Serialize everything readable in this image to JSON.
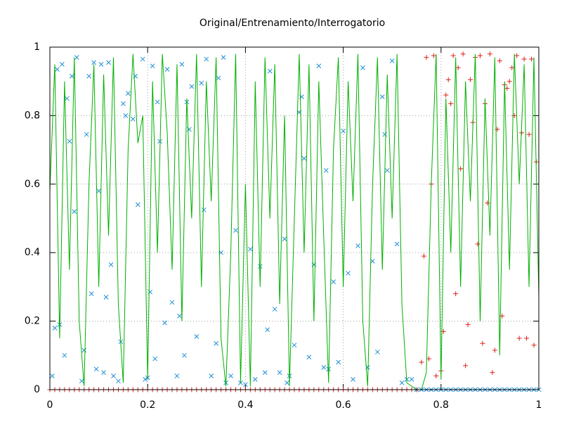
{
  "chart_data": {
    "type": "scatter",
    "title": "Original/Entrenamiento/Interrogatorio",
    "xlim": [
      0,
      1
    ],
    "ylim": [
      0,
      1
    ],
    "xticks": [
      0,
      0.2,
      0.4,
      0.6,
      0.8,
      1
    ],
    "yticks": [
      0,
      0.2,
      0.4,
      0.6,
      0.8,
      1
    ],
    "grid": true,
    "series": [
      {
        "color": "#00b000",
        "marker": "line",
        "x": [
          0,
          0.01,
          0.02,
          0.03,
          0.04,
          0.05,
          0.06,
          0.07,
          0.08,
          0.09,
          0.1,
          0.11,
          0.12,
          0.13,
          0.14,
          0.15,
          0.16,
          0.17,
          0.18,
          0.19,
          0.2,
          0.21,
          0.22,
          0.23,
          0.24,
          0.25,
          0.26,
          0.27,
          0.28,
          0.29,
          0.3,
          0.31,
          0.32,
          0.33,
          0.34,
          0.35,
          0.36,
          0.37,
          0.38,
          0.39,
          0.4,
          0.41,
          0.42,
          0.43,
          0.44,
          0.45,
          0.46,
          0.47,
          0.48,
          0.49,
          0.5,
          0.51,
          0.52,
          0.53,
          0.54,
          0.55,
          0.56,
          0.57,
          0.58,
          0.59,
          0.6,
          0.61,
          0.62,
          0.63,
          0.64,
          0.65,
          0.66,
          0.67,
          0.68,
          0.69,
          0.7,
          0.71,
          0.72,
          0.73,
          0.74,
          0.75,
          0.76,
          0.77,
          0.78,
          0.79,
          0.8,
          0.81,
          0.82,
          0.83,
          0.84,
          0.85,
          0.86,
          0.87,
          0.88,
          0.89,
          0.9,
          0.91,
          0.92,
          0.93,
          0.94,
          0.95,
          0.96,
          0.97,
          0.98,
          0.99,
          1
        ],
        "values": [
          0.58,
          0.95,
          0.15,
          0.9,
          0.35,
          0.97,
          0.2,
          0.01,
          0.6,
          0.95,
          0.3,
          0.92,
          0.45,
          0.97,
          0.25,
          0.02,
          0.7,
          0.98,
          0.72,
          0.8,
          0.03,
          0.9,
          0.4,
          0.98,
          0.75,
          0.35,
          0.95,
          0.2,
          0.85,
          0.5,
          0.98,
          0.3,
          0.9,
          0.55,
          0.97,
          0.15,
          0.01,
          0.4,
          0.98,
          0.02,
          0.6,
          0.01,
          0.9,
          0.3,
          0.97,
          0.5,
          0.95,
          0.25,
          0.8,
          0.01,
          0.5,
          0.98,
          0.4,
          0.95,
          0.2,
          0.9,
          0.45,
          0.02,
          0.7,
          0.97,
          0.3,
          0.9,
          0.55,
          0.98,
          0.2,
          0.01,
          0.6,
          0.97,
          0.35,
          0.92,
          0.5,
          0.98,
          0.25,
          0.02,
          0.01,
          0,
          0,
          0.05,
          0.6,
          0.98,
          0.03,
          0.85,
          0.4,
          0.97,
          0.3,
          0.9,
          0.55,
          0.98,
          0.2,
          0.85,
          0.45,
          0.97,
          0.1,
          0.9,
          0.35,
          0.98,
          0.6,
          0.95,
          0.3,
          0.97,
          0.27
        ]
      },
      {
        "color": "#1f8fd6",
        "marker": "x",
        "x": [
          0.005,
          0.01,
          0.015,
          0.02,
          0.025,
          0.03,
          0.035,
          0.04,
          0.045,
          0.05,
          0.055,
          0.065,
          0.07,
          0.075,
          0.08,
          0.085,
          0.09,
          0.095,
          0.1,
          0.105,
          0.11,
          0.115,
          0.12,
          0.125,
          0.13,
          0.14,
          0.145,
          0.15,
          0.155,
          0.16,
          0.17,
          0.175,
          0.18,
          0.19,
          0.195,
          0.2,
          0.205,
          0.21,
          0.215,
          0.22,
          0.225,
          0.235,
          0.24,
          0.25,
          0.26,
          0.265,
          0.27,
          0.275,
          0.28,
          0.285,
          0.29,
          0.3,
          0.31,
          0.315,
          0.32,
          0.33,
          0.34,
          0.345,
          0.35,
          0.355,
          0.36,
          0.37,
          0.38,
          0.39,
          0.4,
          0.41,
          0.42,
          0.43,
          0.44,
          0.445,
          0.45,
          0.46,
          0.47,
          0.48,
          0.485,
          0.49,
          0.5,
          0.51,
          0.515,
          0.52,
          0.53,
          0.54,
          0.55,
          0.56,
          0.565,
          0.57,
          0.58,
          0.59,
          0.6,
          0.61,
          0.62,
          0.63,
          0.64,
          0.65,
          0.66,
          0.67,
          0.68,
          0.685,
          0.69,
          0.7,
          0.71,
          0.72,
          0.73,
          0.74,
          0.75,
          0.76,
          0.77,
          0.78,
          0.79,
          0.8,
          0.81,
          0.82,
          0.83,
          0.84,
          0.85,
          0.86,
          0.87,
          0.88,
          0.89,
          0.9,
          0.91,
          0.92,
          0.93,
          0.94,
          0.95,
          0.96,
          0.97,
          0.98,
          0.99,
          1
        ],
        "values": [
          0.04,
          0.18,
          0.935,
          0.19,
          0.95,
          0.1,
          0.85,
          0.725,
          0.915,
          0.52,
          0.97,
          0.025,
          0.115,
          0.745,
          0.915,
          0.28,
          0.955,
          0.06,
          0.58,
          0.95,
          0.05,
          0.27,
          0.955,
          0.365,
          0.04,
          0.025,
          0.14,
          0.835,
          0.8,
          0.865,
          0.79,
          0.915,
          0.54,
          0.965,
          0.03,
          0.035,
          0.285,
          0.945,
          0.09,
          0.84,
          0.725,
          0.195,
          0.935,
          0.255,
          0.04,
          0.215,
          0.95,
          0.1,
          0.84,
          0.76,
          0.885,
          0.155,
          0.895,
          0.525,
          0.965,
          0.04,
          0.135,
          0.91,
          0.4,
          0.97,
          0.02,
          0.04,
          0.465,
          0.02,
          0.015,
          0.41,
          0.03,
          0.36,
          0.05,
          0.175,
          0.93,
          0.235,
          0.05,
          0.44,
          0.02,
          0.04,
          0.13,
          0.81,
          0.855,
          0.675,
          0.095,
          0.365,
          0.945,
          0.065,
          0.64,
          0.06,
          0.315,
          0.08,
          0.755,
          0.34,
          0.03,
          0.42,
          0.94,
          0.065,
          0.375,
          0.11,
          0.855,
          0.745,
          0.64,
          0.96,
          0.425,
          0.02,
          0.03,
          0.03,
          0,
          0,
          0,
          0,
          0,
          0,
          0,
          0,
          0,
          0,
          0,
          0,
          0,
          0,
          0,
          0,
          0,
          0,
          0,
          0,
          0,
          0,
          0,
          0,
          0,
          0
        ]
      },
      {
        "color": "#e0201b",
        "marker": "plus",
        "x": [
          0,
          0.01,
          0.02,
          0.03,
          0.04,
          0.05,
          0.06,
          0.07,
          0.08,
          0.09,
          0.1,
          0.11,
          0.12,
          0.13,
          0.14,
          0.15,
          0.16,
          0.17,
          0.18,
          0.19,
          0.2,
          0.21,
          0.22,
          0.23,
          0.24,
          0.25,
          0.26,
          0.27,
          0.28,
          0.29,
          0.3,
          0.31,
          0.32,
          0.33,
          0.34,
          0.35,
          0.36,
          0.37,
          0.38,
          0.39,
          0.4,
          0.41,
          0.42,
          0.43,
          0.44,
          0.45,
          0.46,
          0.47,
          0.48,
          0.49,
          0.5,
          0.51,
          0.52,
          0.53,
          0.54,
          0.55,
          0.56,
          0.57,
          0.58,
          0.59,
          0.6,
          0.61,
          0.62,
          0.63,
          0.64,
          0.65,
          0.66,
          0.67,
          0.68,
          0.69,
          0.7,
          0.71,
          0.72,
          0.73,
          0.74,
          0.75,
          0.76,
          0.765,
          0.77,
          0.775,
          0.78,
          0.785,
          0.79,
          0.8,
          0.805,
          0.81,
          0.815,
          0.82,
          0.825,
          0.83,
          0.835,
          0.84,
          0.845,
          0.85,
          0.855,
          0.86,
          0.865,
          0.87,
          0.875,
          0.88,
          0.885,
          0.89,
          0.895,
          0.9,
          0.905,
          0.91,
          0.915,
          0.92,
          0.925,
          0.93,
          0.935,
          0.94,
          0.945,
          0.95,
          0.955,
          0.96,
          0.965,
          0.97,
          0.975,
          0.98,
          0.985,
          0.99,
          0.995
        ],
        "values": [
          0,
          0,
          0,
          0,
          0,
          0,
          0,
          0,
          0,
          0,
          0,
          0,
          0,
          0,
          0,
          0,
          0,
          0,
          0,
          0,
          0,
          0,
          0,
          0,
          0,
          0,
          0,
          0,
          0,
          0,
          0,
          0,
          0,
          0,
          0,
          0,
          0,
          0,
          0,
          0,
          0,
          0,
          0,
          0,
          0,
          0,
          0,
          0,
          0,
          0,
          0,
          0,
          0,
          0,
          0,
          0,
          0,
          0,
          0,
          0,
          0,
          0,
          0,
          0,
          0,
          0,
          0,
          0,
          0,
          0,
          0,
          0,
          0,
          0,
          0,
          0,
          0.08,
          0.39,
          0.97,
          0.09,
          0.6,
          0.975,
          0.04,
          0.055,
          0.17,
          0.86,
          0.905,
          0.835,
          0.975,
          0.28,
          0.94,
          0.645,
          0.98,
          0.07,
          0.19,
          0.905,
          0.78,
          0.97,
          0.425,
          0.975,
          0.135,
          0.835,
          0.545,
          0.98,
          0.05,
          0.115,
          0.76,
          0.96,
          0.215,
          0.89,
          0.88,
          0.9,
          0.94,
          0.8,
          0.975,
          0.15,
          0.75,
          0.965,
          0.15,
          0.745,
          0.965,
          0.13,
          0.665
        ]
      }
    ]
  }
}
